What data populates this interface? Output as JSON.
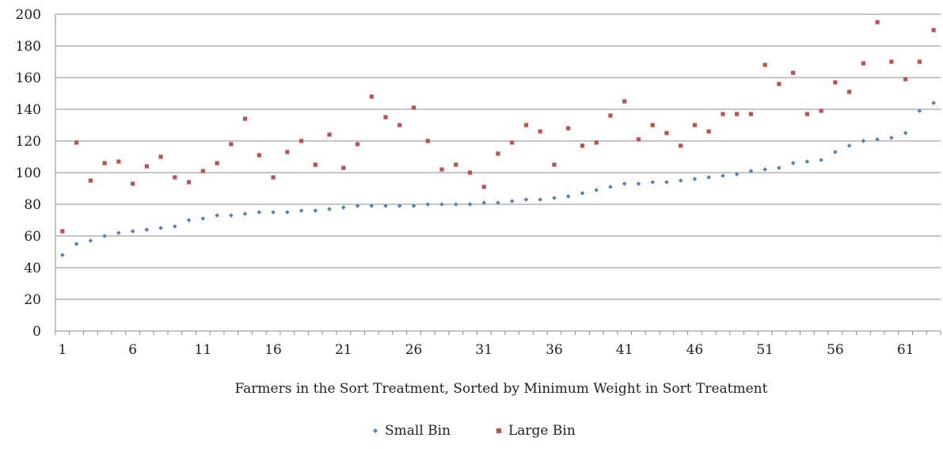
{
  "chart_data": {
    "type": "scatter",
    "title": "",
    "xlabel": "Farmers in the Sort Treatment, Sorted by Minimum Weight in Sort Treatment",
    "ylabel": "",
    "xlim": [
      1,
      64
    ],
    "ylim": [
      0,
      200
    ],
    "x_ticks": [
      "1",
      "6",
      "11",
      "16",
      "21",
      "26",
      "31",
      "36",
      "41",
      "46",
      "51",
      "56",
      "61"
    ],
    "y_ticks": [
      "0",
      "20",
      "40",
      "60",
      "80",
      "100",
      "120",
      "140",
      "160",
      "180",
      "200"
    ],
    "grid": true,
    "legend_position": "bottom",
    "series": [
      {
        "name": "Small Bin",
        "color": "#4f81bd",
        "marker": "diamond",
        "values": [
          48,
          55,
          57,
          60,
          62,
          63,
          64,
          65,
          66,
          70,
          71,
          73,
          73,
          74,
          75,
          75,
          75,
          76,
          76,
          77,
          78,
          79,
          79,
          79,
          79,
          79,
          80,
          80,
          80,
          80,
          81,
          81,
          82,
          83,
          83,
          84,
          85,
          87,
          89,
          91,
          93,
          93,
          94,
          94,
          95,
          96,
          97,
          98,
          99,
          101,
          102,
          103,
          106,
          107,
          108,
          113,
          117,
          120,
          121,
          122,
          125,
          139,
          144
        ]
      },
      {
        "name": "Large Bin",
        "color": "#c0504d",
        "marker": "square",
        "values": [
          63,
          119,
          95,
          106,
          107,
          93,
          104,
          110,
          97,
          94,
          101,
          106,
          118,
          134,
          111,
          97,
          113,
          120,
          105,
          124,
          103,
          118,
          148,
          135,
          130,
          141,
          120,
          102,
          105,
          100,
          91,
          112,
          119,
          130,
          126,
          105,
          128,
          117,
          119,
          136,
          145,
          121,
          130,
          125,
          117,
          130,
          126,
          137,
          137,
          137,
          168,
          156,
          163,
          137,
          139,
          157,
          151,
          169,
          195,
          170,
          159,
          170,
          190
        ]
      }
    ]
  }
}
